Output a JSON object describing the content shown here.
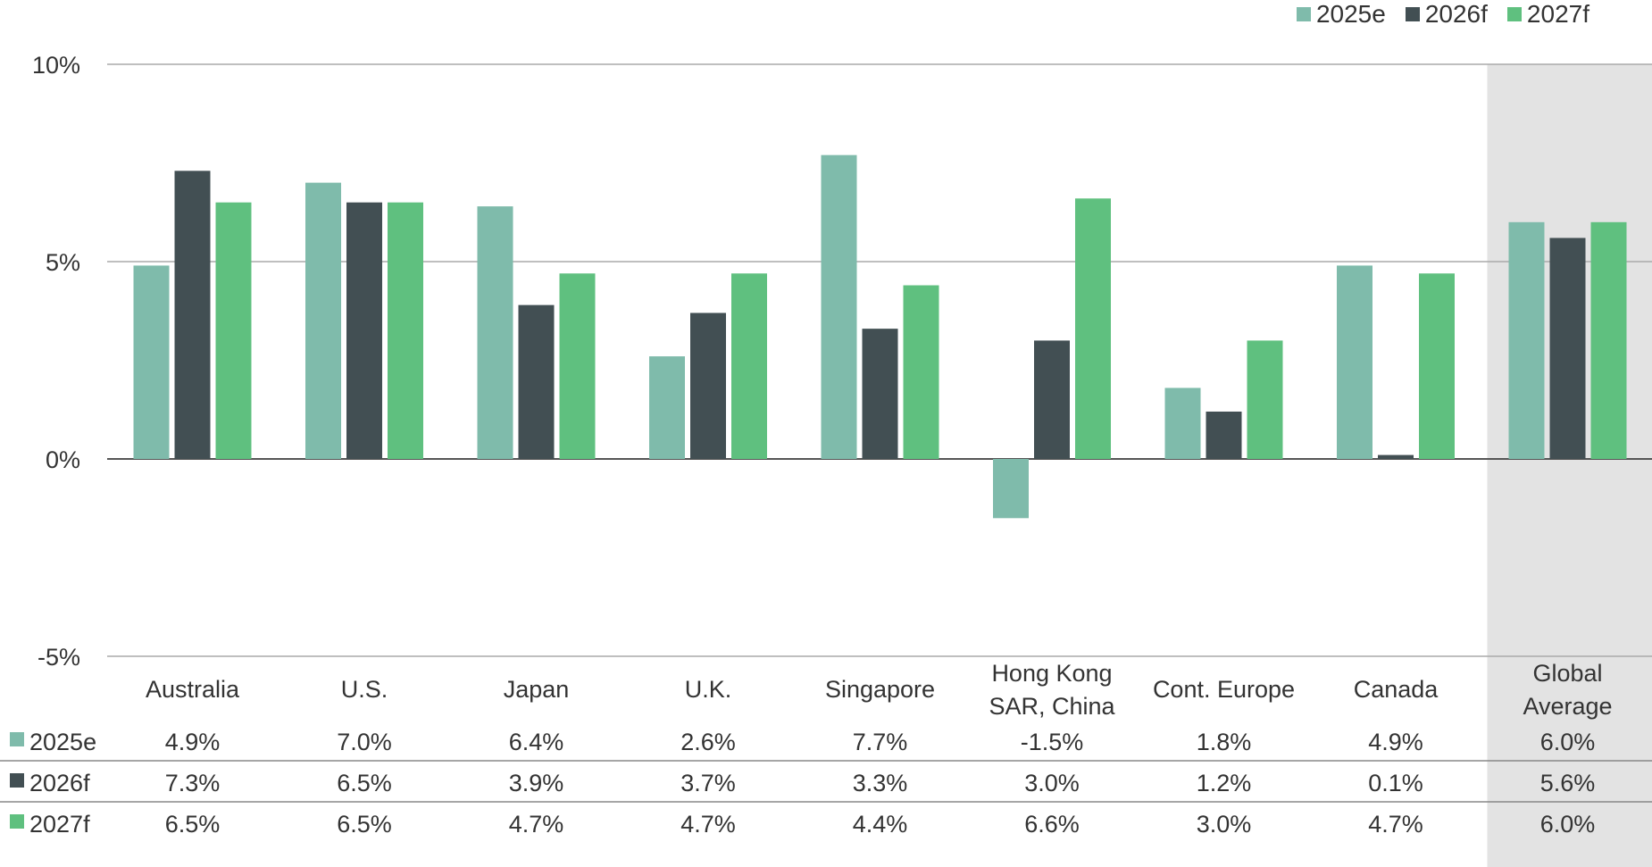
{
  "chart_data": {
    "type": "bar",
    "categories": [
      "Australia",
      "U.S.",
      "Japan",
      "U.K.",
      "Singapore",
      "Hong Kong SAR, China",
      "Cont. Europe",
      "Canada",
      "Global Average"
    ],
    "category_lines": [
      [
        "Australia"
      ],
      [
        "U.S."
      ],
      [
        "Japan"
      ],
      [
        "U.K."
      ],
      [
        "Singapore"
      ],
      [
        "Hong Kong",
        "SAR, China"
      ],
      [
        "Cont. Europe"
      ],
      [
        "Canada"
      ],
      [
        "Global",
        "Average"
      ]
    ],
    "series": [
      {
        "name": "2025e",
        "color": "#7fbbab",
        "values": [
          4.9,
          7.0,
          6.4,
          2.6,
          7.7,
          -1.5,
          1.8,
          4.9,
          6.0
        ]
      },
      {
        "name": "2026f",
        "color": "#424f53",
        "values": [
          7.3,
          6.5,
          3.9,
          3.7,
          3.3,
          3.0,
          1.2,
          0.1,
          5.6
        ]
      },
      {
        "name": "2027f",
        "color": "#5fc07f",
        "values": [
          6.5,
          6.5,
          4.7,
          4.7,
          4.4,
          6.6,
          3.0,
          4.7,
          6.0
        ]
      }
    ],
    "ylim": [
      -5,
      10
    ],
    "yticks": [
      -5,
      0,
      5,
      10
    ],
    "ytick_labels": [
      "-5%",
      "0%",
      "5%",
      "10%"
    ],
    "table_rows": [
      {
        "label": "2025e",
        "values": [
          "4.9%",
          "7.0%",
          "6.4%",
          "2.6%",
          "7.7%",
          "-1.5%",
          "1.8%",
          "4.9%",
          "6.0%"
        ]
      },
      {
        "label": "2026f",
        "values": [
          "7.3%",
          "6.5%",
          "3.9%",
          "3.7%",
          "3.3%",
          "3.0%",
          "1.2%",
          "0.1%",
          "5.6%"
        ]
      },
      {
        "label": "2027f",
        "values": [
          "6.5%",
          "6.5%",
          "4.7%",
          "4.7%",
          "4.4%",
          "6.6%",
          "3.0%",
          "4.7%",
          "6.0%"
        ]
      }
    ],
    "highlight_category": "Global Average",
    "highlight_color": "#e3e3e3",
    "grid": true,
    "legend_position": "top-right"
  }
}
